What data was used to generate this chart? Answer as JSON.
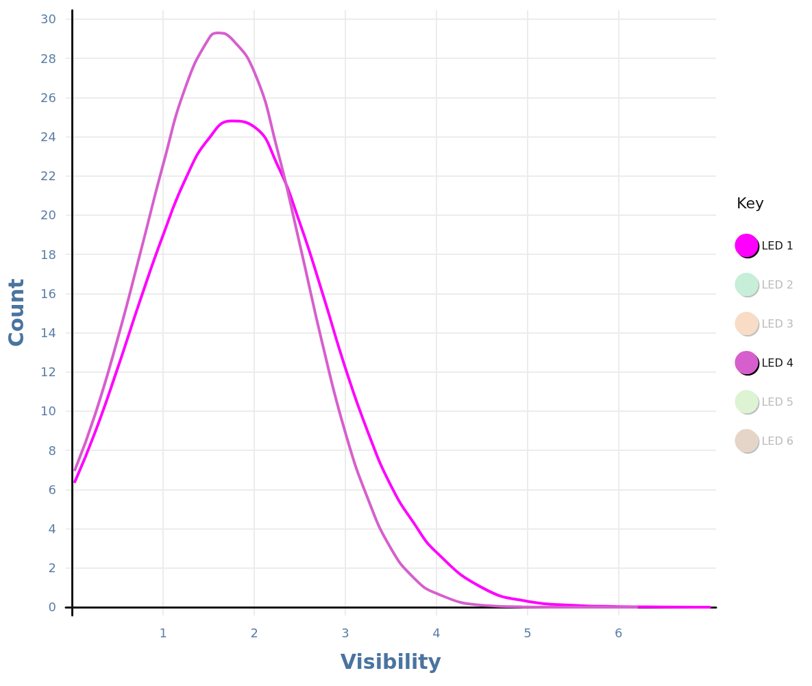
{
  "chart_data": {
    "type": "line",
    "xlabel": "Visibility",
    "ylabel": "Count",
    "legend_title": "Key",
    "xlim": [
      -0.07,
      7.07
    ],
    "xticks": [
      1,
      2,
      3,
      4,
      5,
      6
    ],
    "ylim": [
      -0.42,
      30.45
    ],
    "yticks": [
      0,
      2,
      4,
      6,
      8,
      10,
      12,
      14,
      16,
      18,
      20,
      22,
      24,
      26,
      28,
      30
    ],
    "grid": true,
    "legend": "right",
    "marker": "none",
    "line_style": "solid",
    "series": [
      {
        "name": "LED 1",
        "color": "#ff00ff",
        "x": [
          0.03,
          0.25,
          0.5,
          0.75,
          1,
          1.25,
          1.5,
          1.75,
          2,
          2.25,
          2.5,
          2.75,
          3,
          3.25,
          3.5,
          3.75,
          4,
          4.5,
          5,
          5.5,
          6,
          6.5,
          7
        ],
        "values": [
          6.4,
          8.9,
          12.2,
          15.7,
          19.0,
          21.9,
          23.9,
          24.8,
          24.5,
          22.6,
          19.6,
          16.0,
          12.2,
          8.9,
          6.2,
          4.3,
          2.8,
          1.0,
          0.3,
          0.1,
          0.03,
          0.01,
          0
        ]
      },
      {
        "name": "LED 2",
        "color": "#c6eed9"
      },
      {
        "name": "LED 3",
        "color": "#f8dcc6"
      },
      {
        "name": "LED 4",
        "color": "#d65fcd",
        "x": [
          0.03,
          0.25,
          0.5,
          0.75,
          1,
          1.25,
          1.5,
          1.6,
          1.75,
          2,
          2.25,
          2.5,
          2.75,
          3,
          3.25,
          3.5,
          3.75,
          4,
          4.5,
          5,
          5.5,
          6,
          6.2
        ],
        "values": [
          7.0,
          9.8,
          13.7,
          18.1,
          22.6,
          26.6,
          29.0,
          29.3,
          29.0,
          27.3,
          23.4,
          18.5,
          13.4,
          8.9,
          5.5,
          3.0,
          1.5,
          0.7,
          0.1,
          0.01,
          0,
          0,
          0
        ]
      },
      {
        "name": "LED 5",
        "color": "#ddf3d2"
      },
      {
        "name": "LED 6",
        "color": "#e5d5c8"
      }
    ]
  }
}
